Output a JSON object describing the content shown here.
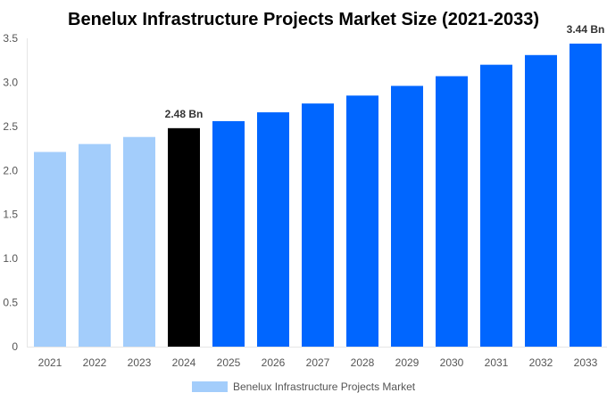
{
  "chart_data": {
    "type": "bar",
    "title": "Benelux Infrastructure Projects Market Size (2021-2033)",
    "xlabel": "",
    "ylabel": "",
    "ylim": [
      0,
      3.5
    ],
    "yticks": [
      "0",
      "0.5",
      "1.0",
      "1.5",
      "2.0",
      "2.5",
      "3.0",
      "3.5"
    ],
    "grid": false,
    "legend_position": "bottom",
    "categories": [
      "2021",
      "2022",
      "2023",
      "2024",
      "2025",
      "2026",
      "2027",
      "2028",
      "2029",
      "2030",
      "2031",
      "2032",
      "2033"
    ],
    "series": [
      {
        "name": "Benelux Infrastructure Projects Market",
        "values": [
          2.21,
          2.3,
          2.38,
          2.48,
          2.56,
          2.66,
          2.76,
          2.85,
          2.96,
          3.07,
          3.2,
          3.31,
          3.44
        ]
      }
    ],
    "bar_colors": {
      "historical": "#a3cdfb",
      "base_year": "#000000",
      "forecast": "#0066ff"
    },
    "bar_color_groups": [
      "historical",
      "historical",
      "historical",
      "base_year",
      "forecast",
      "forecast",
      "forecast",
      "forecast",
      "forecast",
      "forecast",
      "forecast",
      "forecast",
      "forecast"
    ],
    "data_labels": [
      {
        "category": "2024",
        "text": "2.48 Bn"
      },
      {
        "category": "2033",
        "text": "3.44 Bn"
      }
    ],
    "legend_color": "#a3cdfb"
  }
}
